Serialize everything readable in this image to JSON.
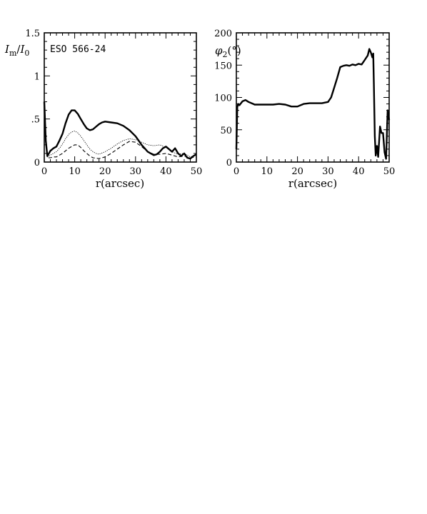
{
  "chart_data": [
    {
      "type": "line",
      "title": "",
      "annotation": "ESO 566-24",
      "xlabel": "r(arcsec)",
      "ylabel": "I_m/I_0",
      "ylabel_parts": {
        "main": "I",
        "sub_m": "m",
        "slash": "/",
        "main2": "I",
        "sub_0": "0"
      },
      "xlim": [
        0,
        50
      ],
      "ylim": [
        0,
        1.5
      ],
      "xticks": [
        0,
        10,
        20,
        30,
        40,
        50
      ],
      "xtick_labels": [
        "0",
        "10",
        "20",
        "30",
        "40",
        "50"
      ],
      "yticks": [
        0,
        0.5,
        1,
        1.5
      ],
      "ytick_labels": [
        "0",
        ".5",
        "1",
        "1.5"
      ],
      "series": [
        {
          "style": "solid-thick",
          "x": [
            0,
            0.5,
            1,
            2,
            3,
            4,
            5,
            6,
            7,
            8,
            9,
            10,
            11,
            12,
            13,
            14,
            15,
            16,
            17,
            18,
            19,
            20,
            22,
            24,
            26,
            28,
            30,
            31,
            32,
            33,
            34,
            35,
            36,
            37,
            38,
            39,
            40,
            41,
            42,
            43,
            44,
            45,
            46,
            47,
            48,
            49,
            50
          ],
          "y": [
            0.7,
            0.25,
            0.07,
            0.13,
            0.16,
            0.18,
            0.25,
            0.33,
            0.45,
            0.55,
            0.6,
            0.6,
            0.56,
            0.5,
            0.44,
            0.39,
            0.37,
            0.38,
            0.41,
            0.44,
            0.46,
            0.47,
            0.46,
            0.45,
            0.42,
            0.37,
            0.3,
            0.25,
            0.2,
            0.16,
            0.12,
            0.1,
            0.08,
            0.09,
            0.12,
            0.16,
            0.18,
            0.15,
            0.12,
            0.16,
            0.1,
            0.07,
            0.1,
            0.05,
            0.04,
            0.07,
            0.09
          ]
        },
        {
          "style": "dotted",
          "x": [
            0,
            1,
            2,
            3,
            4,
            5,
            6,
            7,
            8,
            9,
            10,
            11,
            12,
            13,
            14,
            15,
            16,
            17,
            18,
            20,
            22,
            24,
            26,
            28,
            30,
            32,
            34,
            36,
            38,
            40,
            42,
            44,
            46,
            48,
            50
          ],
          "y": [
            0.5,
            0.06,
            0.08,
            0.1,
            0.12,
            0.16,
            0.21,
            0.27,
            0.32,
            0.35,
            0.36,
            0.34,
            0.3,
            0.25,
            0.2,
            0.15,
            0.12,
            0.1,
            0.09,
            0.12,
            0.16,
            0.21,
            0.25,
            0.27,
            0.26,
            0.23,
            0.2,
            0.19,
            0.2,
            0.17,
            0.12,
            0.09,
            0.1,
            0.06,
            0.08
          ]
        },
        {
          "style": "dashed",
          "x": [
            0,
            1,
            2,
            3,
            4,
            5,
            6,
            7,
            8,
            9,
            10,
            11,
            12,
            13,
            14,
            15,
            16,
            18,
            20,
            22,
            24,
            26,
            28,
            30,
            32,
            34,
            36,
            38,
            40,
            42,
            44,
            46,
            48,
            50
          ],
          "y": [
            0.5,
            0.05,
            0.05,
            0.06,
            0.06,
            0.08,
            0.1,
            0.13,
            0.16,
            0.18,
            0.2,
            0.2,
            0.17,
            0.13,
            0.1,
            0.07,
            0.05,
            0.04,
            0.06,
            0.1,
            0.15,
            0.2,
            0.24,
            0.23,
            0.18,
            0.12,
            0.09,
            0.09,
            0.1,
            0.08,
            0.06,
            0.07,
            0.05,
            0.06
          ]
        }
      ]
    },
    {
      "type": "line",
      "title": "",
      "xlabel": "r(arcsec)",
      "ylabel": "φ₂(°)",
      "ylabel_parts": {
        "main": "φ",
        "sub": "2",
        "rest": "(°)"
      },
      "xlim": [
        0,
        50
      ],
      "ylim": [
        0,
        200
      ],
      "xticks": [
        0,
        10,
        20,
        30,
        40,
        50
      ],
      "xtick_labels": [
        "0",
        "10",
        "20",
        "30",
        "40",
        "50"
      ],
      "yticks": [
        0,
        50,
        100,
        150,
        200
      ],
      "ytick_labels": [
        "0",
        "50",
        "100",
        "150",
        "200"
      ],
      "series": [
        {
          "style": "solid-thick",
          "x": [
            0,
            0.3,
            0.6,
            1,
            2,
            3,
            4,
            5,
            6,
            8,
            10,
            12,
            14,
            16,
            18,
            20,
            22,
            24,
            26,
            28,
            30,
            31,
            32,
            33,
            34,
            35,
            36,
            37,
            38,
            39,
            40,
            41,
            42,
            43,
            43.5,
            44,
            44.5,
            44.8,
            45,
            45.3,
            45.6,
            46,
            46.4,
            47,
            47.5,
            48,
            48.5,
            49,
            49.5,
            50
          ],
          "y": [
            20,
            85,
            90,
            88,
            94,
            96,
            93,
            91,
            89,
            89,
            89,
            89,
            90,
            89,
            86,
            86,
            90,
            91,
            91,
            91,
            93,
            100,
            115,
            130,
            147,
            149,
            150,
            149,
            151,
            150,
            152,
            151,
            158,
            165,
            175,
            170,
            162,
            168,
            120,
            40,
            10,
            25,
            8,
            55,
            45,
            45,
            15,
            5,
            80,
            65
          ]
        }
      ]
    }
  ]
}
